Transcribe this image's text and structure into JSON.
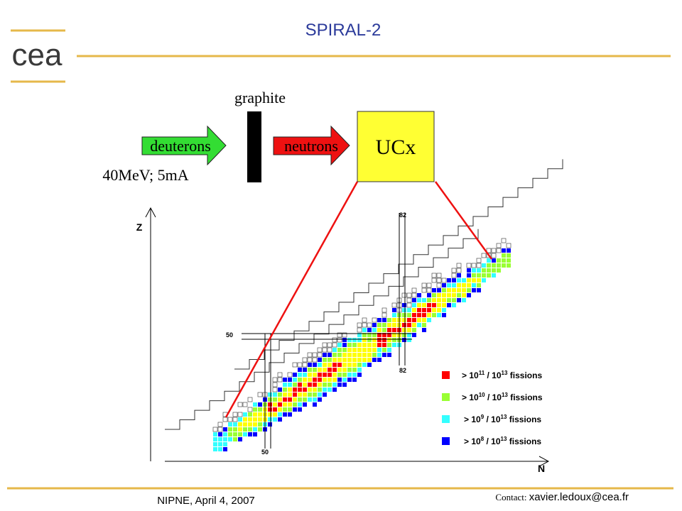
{
  "header": {
    "title": "SPIRAL-2",
    "logo": "cea"
  },
  "diagram": {
    "graphite": "graphite",
    "deuterons": "deuterons",
    "neutrons": "neutrons",
    "target": "UCx",
    "beam": "40MeV; 5mA"
  },
  "chart": {
    "z_axis": "Z",
    "n_axis": "N",
    "z_magic": "50",
    "n_magic_50": "50",
    "n_magic_82_top": "82",
    "n_magic_82_bottom": "82",
    "legend": [
      {
        "color": "#ff0000",
        "parts": [
          "> 10",
          "11",
          " / 10",
          "13",
          " fissions"
        ]
      },
      {
        "color": "#99ff33",
        "parts": [
          "> 10",
          "10",
          " / 10",
          "13",
          " fissions"
        ]
      },
      {
        "color": "#33ffff",
        "parts": [
          "> 10",
          "9",
          " / 10",
          "13",
          " fissions"
        ]
      },
      {
        "color": "#0000ff",
        "parts": [
          "> 10",
          "8",
          " / 10",
          "13",
          " fissions"
        ]
      }
    ]
  },
  "footer": {
    "left": "NIPNE, April 4, 2007",
    "contact_label": "Contact: ",
    "contact": "xavier.ledoux@cea.fr"
  }
}
